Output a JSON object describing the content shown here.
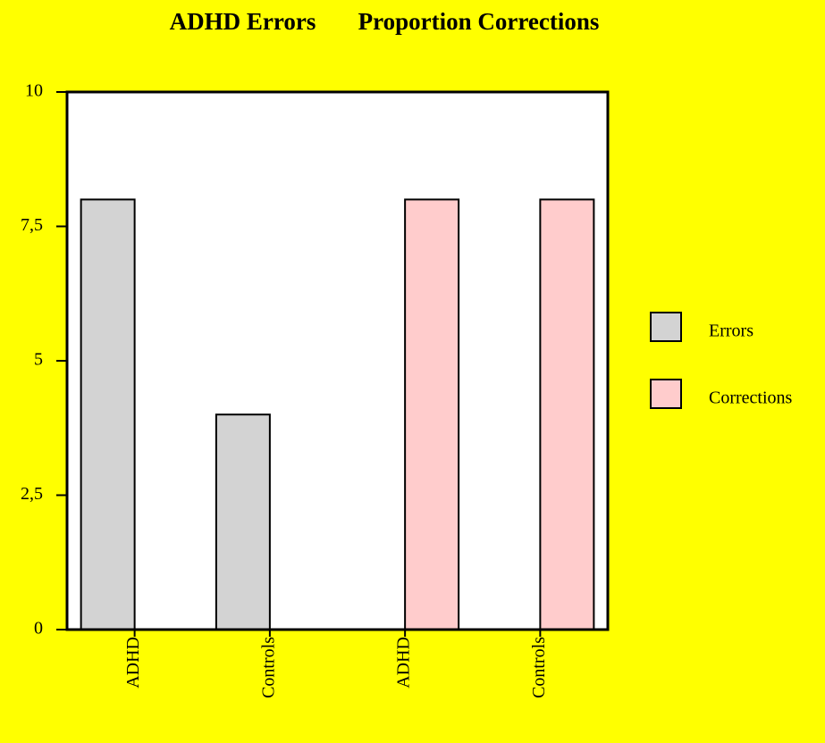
{
  "chart_data": {
    "type": "bar",
    "title": "ADHD Errors       Proportion Corrections",
    "categories": [
      "ADHD",
      "Controls",
      "ADHD",
      "Controls"
    ],
    "series": [
      {
        "name": "Errors",
        "color": "#d3d3d3",
        "values": [
          8,
          4,
          null,
          null
        ]
      },
      {
        "name": "Corrections",
        "color": "#ffcccc",
        "values": [
          null,
          null,
          8,
          8
        ]
      }
    ],
    "ylim": [
      0,
      10
    ],
    "yticks": [
      0,
      {
        "value": 2.5,
        "label": "2,5"
      },
      5,
      {
        "value": 7.5,
        "label": "7,5"
      },
      10
    ],
    "legend": "right"
  }
}
